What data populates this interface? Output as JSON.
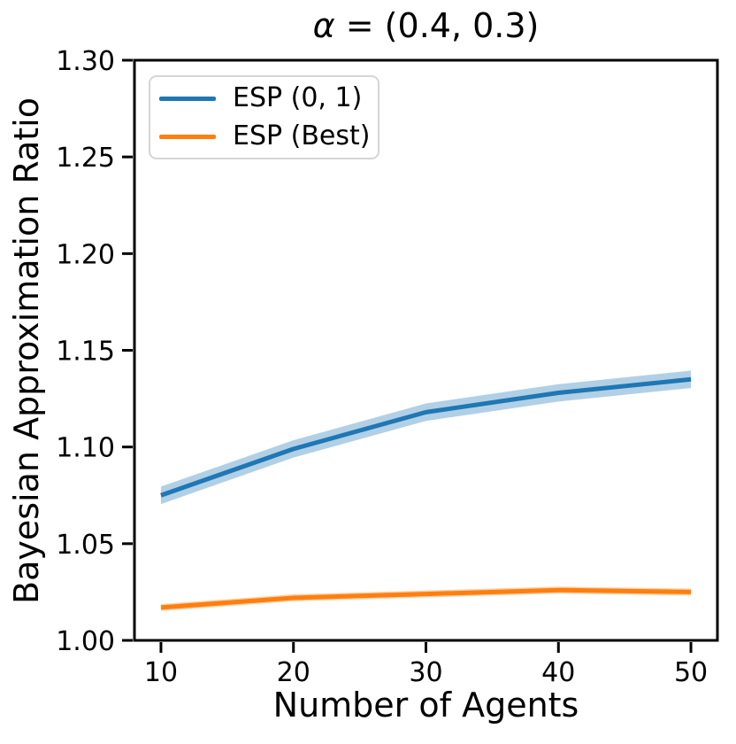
{
  "figure": {
    "background": "#ffffff",
    "title_parts": {
      "alpha": "α",
      "rest": " = (0.4, 0.3)"
    }
  },
  "chart_data": {
    "type": "line",
    "title": "α = (0.4, 0.3)",
    "xlabel": "Number of Agents",
    "ylabel": "Bayesian Approximation Ratio",
    "x": [
      10,
      20,
      30,
      40,
      50
    ],
    "series": [
      {
        "name": "ESP (0, 1)",
        "color": "#1f77b4",
        "values": [
          1.075,
          1.099,
          1.118,
          1.128,
          1.135
        ],
        "band_halfwidth": 0.0045
      },
      {
        "name": "ESP (Best)",
        "color": "#ff7f0e",
        "values": [
          1.017,
          1.022,
          1.024,
          1.026,
          1.025
        ],
        "band_halfwidth": 0.0018
      }
    ],
    "band_opacity": 0.35,
    "line_width": 5,
    "xlim": [
      8,
      52
    ],
    "ylim": [
      1.0,
      1.3
    ],
    "xticks": [
      10,
      20,
      30,
      40,
      50
    ],
    "xtick_labels": [
      "10",
      "20",
      "30",
      "40",
      "50"
    ],
    "yticks": [
      1.0,
      1.05,
      1.1,
      1.15,
      1.2,
      1.25,
      1.3
    ],
    "ytick_labels": [
      "1.00",
      "1.05",
      "1.10",
      "1.15",
      "1.20",
      "1.25",
      "1.30"
    ],
    "grid": false,
    "legend_position": "upper left",
    "axis_color": "#000000"
  }
}
